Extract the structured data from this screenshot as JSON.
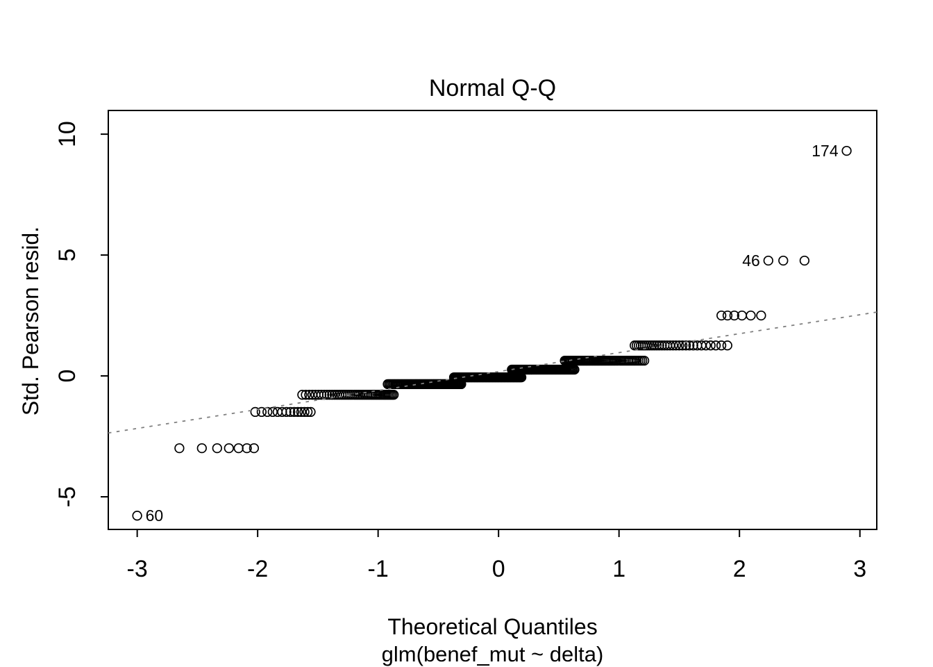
{
  "chart_data": {
    "type": "scatter",
    "title": "Normal Q-Q",
    "xlabel": "Theoretical Quantiles",
    "xlabel_sub": "glm(benef_mut ~ delta)",
    "ylabel": "Std. Pearson resid.",
    "x_ticks": [
      -3,
      -2,
      -1,
      0,
      1,
      2,
      3
    ],
    "y_ticks": [
      -5,
      0,
      5,
      10
    ],
    "xlim": [
      -3.24,
      3.14
    ],
    "ylim": [
      -6.35,
      10.98
    ],
    "grid": false,
    "background": "#FFFFFF",
    "point_color": "#000000",
    "axis_color": "#000000",
    "reference_line": {
      "style": "dotted",
      "color": "#7F7F7F",
      "x1": -3.24,
      "y1": -2.36,
      "x2": 3.14,
      "y2": 2.64
    },
    "bands": [
      {
        "r": -5.78,
        "t_min": -3.0,
        "t_max": -3.0,
        "n": 1
      },
      {
        "r": -2.99,
        "t_min": -2.65,
        "t_max": -2.03,
        "n": 7
      },
      {
        "r": -1.49,
        "t_min": -2.02,
        "t_max": -1.56,
        "n": 14
      },
      {
        "r": -0.78,
        "t_min": -1.63,
        "t_max": -0.87,
        "n": 45
      },
      {
        "r": -0.34,
        "t_min": -0.92,
        "t_max": -0.31,
        "n": 70
      },
      {
        "r": -0.06,
        "t_min": -0.37,
        "t_max": 0.19,
        "n": 75
      },
      {
        "r": 0.26,
        "t_min": 0.11,
        "t_max": 0.63,
        "n": 62
      },
      {
        "r": 0.63,
        "t_min": 0.55,
        "t_max": 1.21,
        "n": 58
      },
      {
        "r": 1.26,
        "t_min": 1.13,
        "t_max": 1.9,
        "n": 30
      },
      {
        "r": 2.5,
        "t_min": 1.85,
        "t_max": 2.18,
        "n": 6
      },
      {
        "r": 4.77,
        "t_min": 2.24,
        "t_max": 2.54,
        "n": 3
      },
      {
        "r": 9.31,
        "t_min": 2.89,
        "t_max": 2.89,
        "n": 1
      }
    ],
    "labeled_points": [
      {
        "label": "174",
        "t": 2.89,
        "r": 9.31,
        "side": "left"
      },
      {
        "label": "46",
        "t": 2.24,
        "r": 4.77,
        "side": "left"
      },
      {
        "label": "60",
        "t": -3.0,
        "r": -5.78,
        "side": "right"
      }
    ]
  }
}
